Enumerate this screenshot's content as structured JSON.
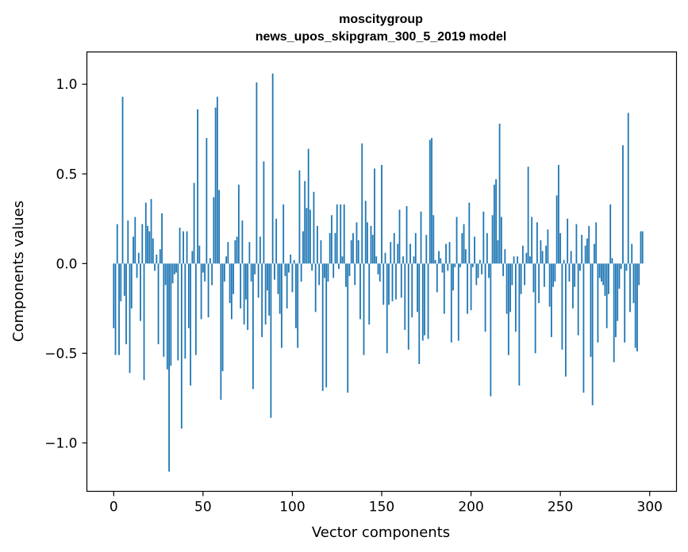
{
  "chart_data": {
    "type": "bar",
    "title": "moscitygroup\nnews_upos_skipgram_300_5_2019 model",
    "title_lines": [
      "moscitygroup",
      "news_upos_skipgram_300_5_2019 model"
    ],
    "xlabel": "Vector components",
    "ylabel": "Components values",
    "xlim": [
      -15,
      315
    ],
    "ylim": [
      -1.27,
      1.18
    ],
    "xticks": [
      0,
      50,
      100,
      150,
      200,
      250,
      300
    ],
    "xtick_labels": [
      "0",
      "50",
      "100",
      "150",
      "200",
      "250",
      "300"
    ],
    "yticks": [
      -1.0,
      -0.5,
      0.0,
      0.5,
      1.0
    ],
    "ytick_labels": [
      "−1.0",
      "−0.5",
      "0.0",
      "0.5",
      "1.0"
    ],
    "grid": false,
    "legend": "none",
    "bar_color": "#1f77b4",
    "values": [
      -0.36,
      -0.51,
      0.22,
      -0.51,
      -0.21,
      0.93,
      -0.18,
      -0.45,
      0.24,
      -0.61,
      -0.25,
      0.15,
      0.26,
      -0.08,
      0.06,
      -0.32,
      0.22,
      -0.65,
      0.34,
      0.21,
      0.18,
      0.36,
      0.14,
      -0.04,
      0.05,
      -0.45,
      0.08,
      0.28,
      -0.52,
      -0.12,
      -0.59,
      -1.16,
      -0.57,
      -0.11,
      -0.06,
      -0.05,
      -0.54,
      0.2,
      -0.92,
      0.18,
      -0.53,
      0.18,
      -0.36,
      -0.68,
      0.07,
      0.45,
      -0.51,
      0.86,
      0.1,
      -0.31,
      -0.05,
      -0.1,
      0.7,
      -0.3,
      0.03,
      -0.12,
      0.37,
      0.87,
      0.93,
      0.41,
      -0.76,
      -0.6,
      -0.1,
      0.04,
      0.12,
      -0.22,
      -0.31,
      -0.17,
      0.13,
      0.15,
      0.44,
      -0.25,
      0.24,
      -0.34,
      -0.2,
      -0.37,
      0.12,
      -0.1,
      -0.7,
      -0.06,
      1.01,
      -0.19,
      0.15,
      -0.41,
      0.57,
      -0.34,
      -0.15,
      -0.29,
      -0.86,
      1.06,
      -0.09,
      0.25,
      -0.17,
      -0.28,
      -0.47,
      0.33,
      -0.07,
      -0.25,
      -0.05,
      0.05,
      -0.16,
      0.02,
      -0.36,
      -0.47,
      0.52,
      -0.1,
      0.18,
      0.46,
      0.31,
      0.64,
      0.3,
      -0.04,
      0.4,
      -0.27,
      0.21,
      -0.12,
      0.13,
      -0.71,
      -0.08,
      -0.69,
      -0.1,
      0.17,
      0.27,
      -0.08,
      0.17,
      0.33,
      -0.03,
      0.33,
      0.04,
      0.33,
      -0.13,
      -0.72,
      -0.07,
      0.13,
      0.17,
      -0.12,
      0.23,
      0.13,
      -0.31,
      0.67,
      -0.51,
      0.35,
      0.23,
      -0.34,
      0.21,
      0.16,
      0.53,
      0.04,
      -0.06,
      -0.1,
      0.55,
      -0.23,
      0.06,
      -0.5,
      -0.23,
      0.12,
      -0.21,
      0.17,
      -0.2,
      0.11,
      0.3,
      -0.19,
      0.04,
      -0.37,
      0.32,
      -0.48,
      0.11,
      -0.3,
      0.04,
      0.17,
      -0.27,
      -0.56,
      0.29,
      -0.43,
      -0.4,
      0.16,
      -0.42,
      0.69,
      0.7,
      0.27,
      0.02,
      -0.16,
      0.07,
      0.03,
      -0.05,
      -0.28,
      0.11,
      -0.04,
      0.12,
      -0.44,
      -0.15,
      -0.02,
      0.26,
      -0.43,
      -0.02,
      0.17,
      0.22,
      0.08,
      -0.28,
      0.34,
      -0.26,
      -0.02,
      0.15,
      -0.12,
      -0.08,
      0.02,
      -0.06,
      0.29,
      -0.38,
      0.17,
      -0.08,
      -0.74,
      0.27,
      0.44,
      0.47,
      0.13,
      0.78,
      0.26,
      -0.07,
      0.08,
      -0.28,
      -0.51,
      -0.27,
      -0.12,
      0.04,
      -0.38,
      0.04,
      -0.68,
      -0.17,
      0.1,
      -0.12,
      0.06,
      0.54,
      0.04,
      0.26,
      -0.16,
      -0.5,
      0.23,
      -0.22,
      0.13,
      0.07,
      -0.13,
      0.1,
      0.19,
      -0.24,
      -0.41,
      -0.13,
      -0.1,
      0.38,
      0.55,
      0.17,
      -0.48,
      0.02,
      -0.63,
      0.25,
      -0.1,
      0.07,
      -0.25,
      -0.13,
      0.22,
      -0.4,
      -0.04,
      0.16,
      -0.72,
      0.1,
      0.14,
      0.21,
      -0.52,
      -0.79,
      0.11,
      0.23,
      -0.44,
      -0.08,
      -0.1,
      -0.12,
      -0.18,
      -0.36,
      -0.17,
      0.33,
      0.03,
      -0.55,
      -0.41,
      -0.32,
      -0.14,
      -0.03,
      0.66,
      -0.44,
      -0.04,
      0.84,
      -0.27,
      0.11,
      -0.22,
      -0.47,
      -0.49,
      -0.12,
      0.18,
      0.18
    ]
  }
}
